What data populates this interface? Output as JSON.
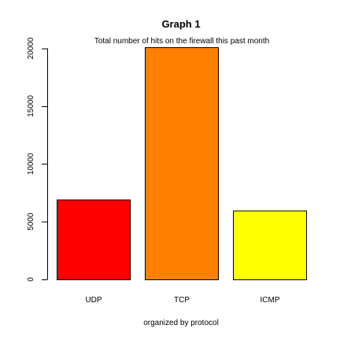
{
  "chart_data": {
    "type": "bar",
    "title": "Graph 1",
    "subtitle": "Total number of hits on the firewall this past month",
    "categories": [
      "UDP",
      "TCP",
      "ICMP"
    ],
    "values": [
      6900,
      20100,
      5950
    ],
    "colors": [
      "#ff0000",
      "#ff7f00",
      "#ffff00"
    ],
    "xlabel": "organized by protocol",
    "ylabel": "",
    "ylim": [
      0,
      20100
    ],
    "yticks": [
      0,
      5000,
      10000,
      15000,
      20000
    ],
    "ytick_labels": [
      "0",
      "5000",
      "10000",
      "15000",
      "20000"
    ],
    "grid": false,
    "legend": "none"
  }
}
